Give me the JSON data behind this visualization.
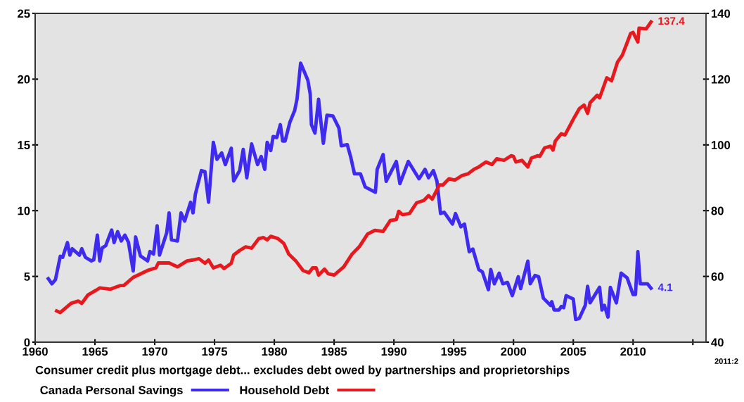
{
  "chart_data": {
    "type": "line",
    "series": [
      {
        "name": "Canada Personal Savings",
        "color": "#3f2af0",
        "x": [
          1961.1,
          1961.4,
          1961.7,
          1962.1,
          1962.3,
          1962.7,
          1962.9,
          1963.1,
          1963.7,
          1963.9,
          1964.2,
          1964.7,
          1964.9,
          1965.2,
          1965.4,
          1965.6,
          1965.9,
          1966.4,
          1966.6,
          1966.9,
          1967.2,
          1967.5,
          1967.8,
          1968.2,
          1968.4,
          1968.8,
          1969.4,
          1969.6,
          1969.9,
          1970.2,
          1970.4,
          1971.0,
          1971.2,
          1971.4,
          1971.9,
          1972.2,
          1972.5,
          1973.0,
          1973.2,
          1973.4,
          1973.9,
          1974.2,
          1974.5,
          1974.9,
          1975.2,
          1975.6,
          1975.9,
          1976.4,
          1976.6,
          1977.1,
          1977.4,
          1977.7,
          1978.1,
          1978.6,
          1978.9,
          1979.2,
          1979.4,
          1979.7,
          1979.9,
          1980.2,
          1980.5,
          1980.7,
          1980.9,
          1981.3,
          1981.7,
          1981.9,
          1982.2,
          1982.8,
          1983.0,
          1983.1,
          1983.4,
          1983.7,
          1983.9,
          1984.1,
          1984.4,
          1984.9,
          1985.4,
          1985.6,
          1986.1,
          1986.4,
          1986.7,
          1987.2,
          1987.6,
          1988.45,
          1988.6,
          1989.1,
          1989.35,
          1990.2,
          1990.5,
          1991.2,
          1992.1,
          1992.6,
          1992.9,
          1993.3,
          1993.6,
          1993.9,
          1994.2,
          1994.9,
          1995.15,
          1995.6,
          1995.9,
          1996.3,
          1996.6,
          1997.1,
          1997.4,
          1997.9,
          1998.1,
          1998.4,
          1998.8,
          1999.1,
          1999.5,
          1999.9,
          2000.4,
          2000.6,
          2001.2,
          2001.4,
          2001.8,
          2002.1,
          2002.5,
          2003.1,
          2003.2,
          2003.4,
          2003.8,
          2004.0,
          2004.2,
          2004.4,
          2005.0,
          2005.2,
          2005.5,
          2006.0,
          2006.2,
          2006.4,
          2007.2,
          2007.4,
          2007.6,
          2007.9,
          2008.1,
          2008.6,
          2009.0,
          2009.5,
          2010.0,
          2010.2,
          2010.4,
          2010.6,
          2011.2,
          2011.5
        ],
        "values": [
          4.83,
          4.44,
          4.76,
          6.53,
          6.45,
          7.57,
          6.62,
          7.1,
          6.62,
          7.1,
          6.45,
          6.18,
          6.26,
          8.14,
          6.18,
          7.16,
          7.34,
          8.53,
          7.57,
          8.4,
          7.69,
          8.14,
          7.6,
          5.42,
          8.0,
          6.56,
          6.18,
          6.89,
          6.7,
          8.85,
          6.62,
          8.32,
          9.83,
          7.78,
          7.69,
          9.83,
          9.21,
          10.64,
          9.83,
          11.26,
          13.05,
          12.96,
          10.64,
          15.2,
          13.9,
          14.39,
          13.5,
          14.75,
          12.26,
          13.05,
          14.66,
          12.5,
          15.07,
          13.5,
          14.12,
          13.14,
          15.2,
          14.57,
          15.64,
          15.55,
          16.54,
          15.29,
          15.29,
          16.72,
          17.61,
          18.5,
          21.22,
          19.93,
          18.87,
          16.54,
          15.9,
          18.47,
          16.72,
          15.12,
          17.25,
          17.2,
          16.28,
          14.93,
          15.02,
          14.03,
          12.8,
          12.8,
          11.8,
          11.4,
          13.14,
          14.27,
          12.23,
          13.74,
          12.05,
          13.74,
          12.42,
          13.14,
          12.5,
          13.05,
          12.23,
          9.78,
          9.88,
          8.98,
          9.78,
          8.77,
          8.98,
          6.88,
          7.08,
          5.52,
          5.34,
          3.99,
          5.52,
          4.44,
          5.25,
          4.44,
          4.54,
          3.54,
          4.98,
          4.07,
          6.16,
          4.44,
          5.07,
          4.98,
          3.34,
          2.8,
          3.08,
          2.44,
          2.44,
          2.71,
          2.62,
          3.54,
          3.28,
          1.72,
          1.81,
          2.8,
          4.25,
          2.99,
          4.17,
          2.44,
          2.8,
          1.9,
          4.17,
          2.99,
          5.25,
          4.89,
          3.62,
          3.62,
          6.88,
          4.44,
          4.44,
          4.1
        ],
        "value_labels": [
          null,
          null,
          null,
          null,
          null,
          null,
          null,
          null,
          null,
          null,
          null,
          null,
          null,
          null,
          null,
          null,
          null,
          null,
          null,
          null,
          null,
          null,
          null,
          null,
          null,
          null,
          null,
          null,
          null,
          null,
          null,
          null,
          null,
          null,
          null,
          null,
          null,
          null,
          null,
          null,
          null,
          null,
          null,
          null,
          null,
          null,
          null,
          null,
          null,
          null,
          null,
          null,
          null,
          null,
          null,
          null,
          null,
          null,
          null,
          null,
          null,
          null,
          null,
          null,
          null,
          null,
          null,
          null,
          null,
          null,
          null,
          null,
          null,
          null,
          null,
          null,
          null,
          null,
          null,
          null,
          null,
          null,
          null,
          null,
          null,
          null,
          null,
          null,
          null,
          null,
          null,
          null,
          null,
          null,
          null,
          null,
          null,
          null,
          null,
          null,
          null,
          null,
          null,
          null,
          null,
          null,
          null,
          null,
          null,
          null,
          null,
          null,
          null,
          null,
          null,
          null,
          null,
          null,
          null,
          null,
          null,
          null,
          null,
          null,
          null,
          null,
          null,
          null,
          null,
          null,
          null,
          null,
          null,
          null,
          null,
          null,
          null,
          null,
          null,
          null,
          null,
          null,
          null,
          null,
          null,
          "4.1"
        ]
      },
      {
        "name": "Household Debt",
        "color": "#e8191e",
        "axis": "y2",
        "x": [
          1961.8,
          1962.1,
          1963.0,
          1963.6,
          1963.9,
          1964.4,
          1965.1,
          1965.4,
          1966.3,
          1966.8,
          1967.1,
          1967.4,
          1968.2,
          1968.6,
          1969.4,
          1970.1,
          1970.3,
          1971.2,
          1971.9,
          1972.7,
          1973.2,
          1973.7,
          1974.2,
          1974.5,
          1974.9,
          1975.5,
          1975.8,
          1976.4,
          1976.6,
          1977.1,
          1977.6,
          1978.1,
          1978.7,
          1979.1,
          1979.4,
          1979.7,
          1980.3,
          1980.8,
          1981.2,
          1981.8,
          1982.4,
          1982.9,
          1983.2,
          1983.5,
          1983.7,
          1984.2,
          1984.5,
          1985.0,
          1985.8,
          1986.5,
          1987.1,
          1987.8,
          1988.4,
          1989.1,
          1989.7,
          1990.2,
          1990.4,
          1990.7,
          1991.3,
          1991.9,
          1992.5,
          1992.9,
          1993.2,
          1993.8,
          1994.1,
          1994.6,
          1995.1,
          1995.7,
          1996.2,
          1996.7,
          1997.1,
          1997.7,
          1998.2,
          1998.6,
          1999.2,
          1999.8,
          2000.0,
          2000.2,
          2000.7,
          2001.2,
          2001.5,
          2002.0,
          2002.2,
          2002.6,
          2003.1,
          2003.3,
          2003.5,
          2004.0,
          2004.3,
          2005.0,
          2005.5,
          2005.9,
          2006.2,
          2006.4,
          2007.0,
          2007.2,
          2007.8,
          2008.2,
          2008.7,
          2009.1,
          2009.8,
          2010.0,
          2010.4,
          2010.5,
          2011.1,
          2011.5
        ],
        "values": [
          49.5,
          49.0,
          51.8,
          52.5,
          51.8,
          54.3,
          55.8,
          56.5,
          56.1,
          56.8,
          57.2,
          57.2,
          59.7,
          60.4,
          61.8,
          62.6,
          64.1,
          64.1,
          62.9,
          64.7,
          65.0,
          65.4,
          64.0,
          65.0,
          62.6,
          63.4,
          62.4,
          64.0,
          66.5,
          67.9,
          69.0,
          68.6,
          71.5,
          71.8,
          71.1,
          72.2,
          71.5,
          70.0,
          66.8,
          64.7,
          61.8,
          61.1,
          62.6,
          62.6,
          60.4,
          62.2,
          60.8,
          60.4,
          62.9,
          66.8,
          69.0,
          72.9,
          74.0,
          73.7,
          77.0,
          77.3,
          79.8,
          78.8,
          79.1,
          82.4,
          83.1,
          84.6,
          83.5,
          87.8,
          87.8,
          89.7,
          89.3,
          90.7,
          91.2,
          92.6,
          93.3,
          94.8,
          94.0,
          95.8,
          95.3,
          96.7,
          96.5,
          94.8,
          95.3,
          93.3,
          96.0,
          96.7,
          96.5,
          99.1,
          99.6,
          98.4,
          101.2,
          103.4,
          103.0,
          107.8,
          111.0,
          112.1,
          109.6,
          112.8,
          115.1,
          114.3,
          120.4,
          119.5,
          125.2,
          127.3,
          133.9,
          134.2,
          131.3,
          135.5,
          135.3,
          137.4
        ],
        "value_labels": [
          null,
          null,
          null,
          null,
          null,
          null,
          null,
          null,
          null,
          null,
          null,
          null,
          null,
          null,
          null,
          null,
          null,
          null,
          null,
          null,
          null,
          null,
          null,
          null,
          null,
          null,
          null,
          null,
          null,
          null,
          null,
          null,
          null,
          null,
          null,
          null,
          null,
          null,
          null,
          null,
          null,
          null,
          null,
          null,
          null,
          null,
          null,
          null,
          null,
          null,
          null,
          null,
          null,
          null,
          null,
          null,
          null,
          null,
          null,
          null,
          null,
          null,
          null,
          null,
          null,
          null,
          null,
          null,
          null,
          null,
          null,
          null,
          null,
          null,
          null,
          null,
          null,
          null,
          null,
          null,
          null,
          null,
          null,
          null,
          null,
          null,
          null,
          null,
          null,
          null,
          null,
          null,
          null,
          null,
          null,
          null,
          null,
          null,
          null,
          null,
          null,
          null,
          null,
          null,
          null,
          "137.4"
        ]
      }
    ],
    "xlim": [
      1960,
      2016.1
    ],
    "xticks": [
      1960,
      1965,
      1970,
      1975,
      1980,
      1985,
      1990,
      1995,
      2000,
      2005,
      2010,
      {
        "value": 2015,
        "label": null
      }
    ],
    "ylim": [
      0,
      25
    ],
    "yticks": [
      0,
      5,
      10,
      15,
      20,
      25
    ],
    "y2lim": [
      40,
      140
    ],
    "y2ticks": [
      40,
      60,
      80,
      100,
      120,
      140
    ],
    "legend": "bottom left",
    "annotations": [
      "Consumer credit plus mortgage debt... excludes debt owed by partnerships and proprietorships",
      "2011:2"
    ]
  }
}
